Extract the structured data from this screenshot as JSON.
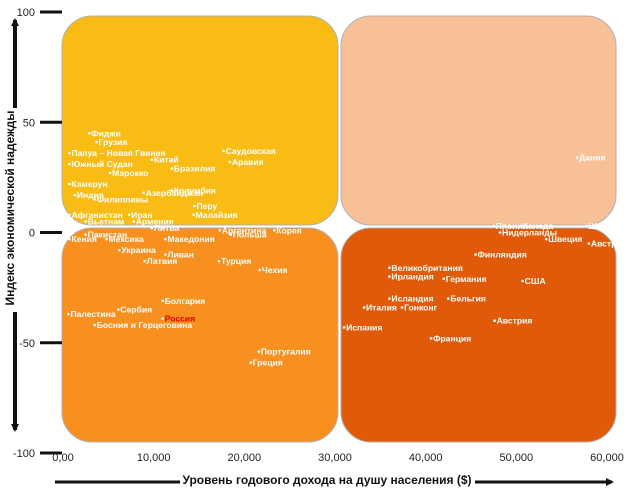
{
  "chart_data": {
    "type": "scatter",
    "xlabel": "Уровень годового дохода на душу населения ($)",
    "ylabel": "Индекс экономической надежды",
    "xlim": [
      0,
      60000
    ],
    "ylim": [
      -100,
      100
    ],
    "x_ticks": [
      "0,00",
      "10,000",
      "20,000",
      "30,000",
      "40,000",
      "50,000",
      "60,000"
    ],
    "x_tick_values": [
      0,
      10000,
      20000,
      30000,
      40000,
      50000,
      60000
    ],
    "y_ticks": [
      "100",
      "50",
      "0",
      "-50",
      "-100"
    ],
    "y_tick_values": [
      100,
      50,
      0,
      -50,
      -100
    ],
    "grid": false,
    "quadrant_colors": {
      "top_left": "#f9bc14",
      "top_right": "#f8c096",
      "bottom_left": "#f7901e",
      "bottom_right": "#e05a09"
    },
    "highlight_color": "#e00000",
    "points": [
      {
        "label": "Фиджи",
        "x": 2900,
        "y": 45
      },
      {
        "label": "Грузия",
        "x": 3700,
        "y": 41
      },
      {
        "label": "Папуа – Новая Гвинея",
        "x": 700,
        "y": 36
      },
      {
        "label": "Китай",
        "x": 9800,
        "y": 33
      },
      {
        "label": "Саудовская",
        "x": 17700,
        "y": 37
      },
      {
        "label": "Аравия",
        "x": 18400,
        "y": 32
      },
      {
        "label": "Дания",
        "x": 56700,
        "y": 34
      },
      {
        "label": "Южный Судан",
        "x": 700,
        "y": 31
      },
      {
        "label": "Бразилия",
        "x": 12000,
        "y": 29
      },
      {
        "label": "Марокко",
        "x": 5200,
        "y": 27
      },
      {
        "label": "Камерун",
        "x": 700,
        "y": 22
      },
      {
        "label": "Колумбия",
        "x": 12000,
        "y": 19
      },
      {
        "label": "Индия",
        "x": 1300,
        "y": 17
      },
      {
        "label": "Азербайджан",
        "x": 8900,
        "y": 18
      },
      {
        "label": "Филиппины",
        "x": 3500,
        "y": 15
      },
      {
        "label": "Перу",
        "x": 14500,
        "y": 12
      },
      {
        "label": "Афганистан",
        "x": 700,
        "y": 8
      },
      {
        "label": "Иран",
        "x": 7300,
        "y": 8
      },
      {
        "label": "Малайзия",
        "x": 14400,
        "y": 8
      },
      {
        "label": "Вьетнам",
        "x": 2500,
        "y": 5
      },
      {
        "label": "Армения",
        "x": 7800,
        "y": 5
      },
      {
        "label": "Литва",
        "x": 9800,
        "y": 2
      },
      {
        "label": "Аргентина",
        "x": 17300,
        "y": 1
      },
      {
        "label": "Корея",
        "x": 23300,
        "y": 1
      },
      {
        "label": "Пакистан",
        "x": 2500,
        "y": -1
      },
      {
        "label": "Польша",
        "x": 18500,
        "y": -1
      },
      {
        "label": "Кения",
        "x": 700,
        "y": -3
      },
      {
        "label": "Мексика",
        "x": 4800,
        "y": -3
      },
      {
        "label": "Македония",
        "x": 11300,
        "y": -3
      },
      {
        "label": "Украина",
        "x": 6200,
        "y": -8
      },
      {
        "label": "Ливан",
        "x": 11300,
        "y": -10
      },
      {
        "label": "Латвия",
        "x": 9000,
        "y": -13
      },
      {
        "label": "Турция",
        "x": 17200,
        "y": -13
      },
      {
        "label": "Чехия",
        "x": 21700,
        "y": -17
      },
      {
        "label": "Болгария",
        "x": 11000,
        "y": -31
      },
      {
        "label": "Палестина",
        "x": 600,
        "y": -37
      },
      {
        "label": "Сербия",
        "x": 6100,
        "y": -35
      },
      {
        "label": "Россия",
        "x": 11000,
        "y": -39,
        "highlight": true
      },
      {
        "label": "Босния и Герцеговина",
        "x": 3500,
        "y": -42
      },
      {
        "label": "Португалия",
        "x": 21600,
        "y": -54
      },
      {
        "label": "Греция",
        "x": 20700,
        "y": -59
      },
      {
        "label": "Швейцария",
        "x": 57700,
        "y": 3
      },
      {
        "label": "Япония",
        "x": 47500,
        "y": 3
      },
      {
        "label": "Канада",
        "x": 50500,
        "y": 3
      },
      {
        "label": "Нидерланды",
        "x": 48200,
        "y": 0
      },
      {
        "label": "Швеция",
        "x": 53300,
        "y": -3
      },
      {
        "label": "Австралия",
        "x": 58000,
        "y": -5
      },
      {
        "label": "Финляндия",
        "x": 45500,
        "y": -10
      },
      {
        "label": "Великобритания",
        "x": 36000,
        "y": -16
      },
      {
        "label": "Ирландия",
        "x": 36000,
        "y": -20
      },
      {
        "label": "Германия",
        "x": 42000,
        "y": -21
      },
      {
        "label": "США",
        "x": 50700,
        "y": -22
      },
      {
        "label": "Исландия",
        "x": 36000,
        "y": -30
      },
      {
        "label": "Бельгия",
        "x": 42500,
        "y": -30
      },
      {
        "label": "Италия",
        "x": 33200,
        "y": -34
      },
      {
        "label": "Гонконг",
        "x": 37400,
        "y": -34
      },
      {
        "label": "Австрия",
        "x": 47600,
        "y": -40
      },
      {
        "label": "Испания",
        "x": 31000,
        "y": -43
      },
      {
        "label": "Франция",
        "x": 40600,
        "y": -48
      }
    ]
  }
}
